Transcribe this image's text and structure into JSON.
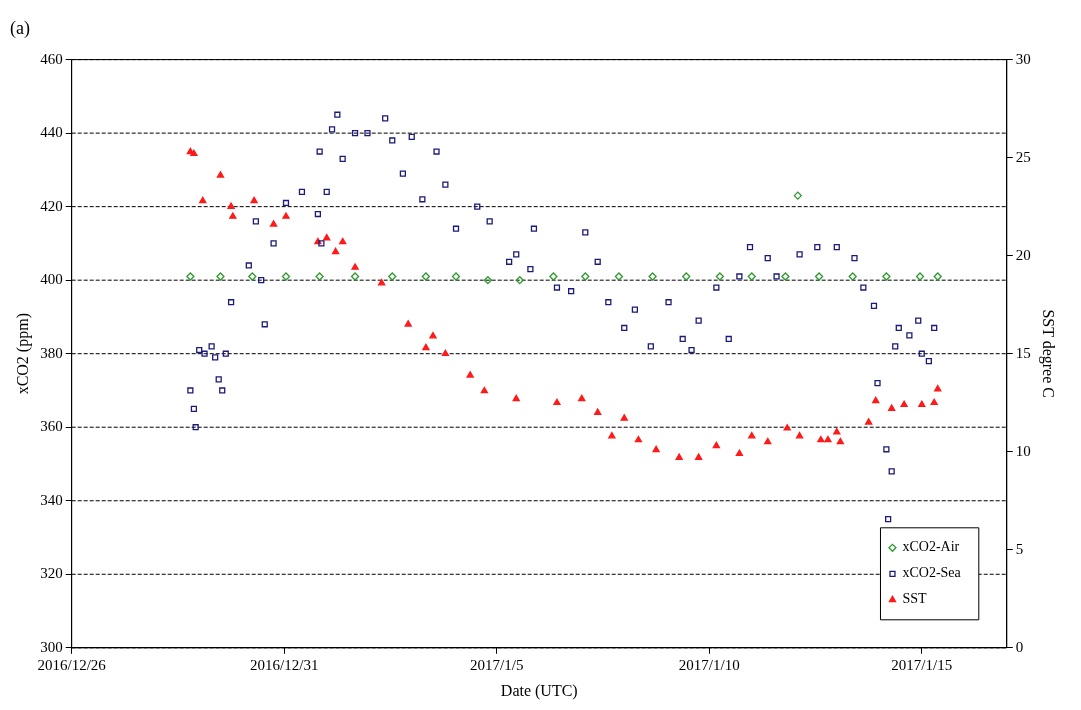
{
  "chart_data": {
    "type": "scatter",
    "title": "(a)",
    "xlabel": "Date (UTC)",
    "ylabel": "xCO2 (ppm)",
    "y2label": "SST degree C",
    "xlim": [
      "2016-12-26",
      "2017-01-17"
    ],
    "xticks": [
      {
        "value": "2016-12-26",
        "label": "2016/12/26"
      },
      {
        "value": "2016-12-31",
        "label": "2016/12/31"
      },
      {
        "value": "2017-01-05",
        "label": "2017/1/5"
      },
      {
        "value": "2017-01-10",
        "label": "2017/1/10"
      },
      {
        "value": "2017-01-15",
        "label": "2017/1/15"
      }
    ],
    "ylim": [
      300,
      460
    ],
    "yticks": [
      300,
      320,
      340,
      360,
      380,
      400,
      420,
      440,
      460
    ],
    "y2lim": [
      0,
      30
    ],
    "y2ticks": [
      0,
      5,
      10,
      15,
      20,
      25,
      30
    ],
    "grid": "y",
    "legend": "bottom right",
    "series": [
      {
        "name": "xCO2-Air",
        "color": "#2e9a2e",
        "marker": "diamond",
        "x": [
          "2016-12-28T19:00",
          "2016-12-29T12:00",
          "2016-12-30T06:00",
          "2016-12-31T01:00",
          "2016-12-31T20:00",
          "2017-01-01T16:00",
          "2017-01-02T13:00",
          "2017-01-03T08:00",
          "2017-01-04T01:00",
          "2017-01-04T19:00",
          "2017-01-05T13:00",
          "2017-01-06T08:00",
          "2017-01-07T02:00",
          "2017-01-07T21:00",
          "2017-01-08T16:00",
          "2017-01-09T11:00",
          "2017-01-10T06:00",
          "2017-01-11T00:00",
          "2017-01-11T19:00",
          "2017-01-12T02:00",
          "2017-01-12T14:00",
          "2017-01-13T09:00",
          "2017-01-14T04:00",
          "2017-01-14T23:00",
          "2017-01-15T09:00"
        ],
        "values": [
          401,
          401,
          401,
          401,
          401,
          401,
          401,
          401,
          401,
          400,
          400,
          401,
          401,
          401,
          401,
          401,
          401,
          401,
          401,
          423,
          401,
          401,
          401,
          401,
          401
        ]
      },
      {
        "name": "xCO2-Sea",
        "color": "#1a1a7a",
        "marker": "square",
        "x": [
          "2016-12-28T19:00",
          "2016-12-28T21:00",
          "2016-12-28T22:00",
          "2016-12-29T00:00",
          "2016-12-29T03:00",
          "2016-12-29T07:00",
          "2016-12-29T09:00",
          "2016-12-29T11:00",
          "2016-12-29T13:00",
          "2016-12-29T15:00",
          "2016-12-29T18:00",
          "2016-12-30T04:00",
          "2016-12-30T08:00",
          "2016-12-30T11:00",
          "2016-12-30T13:00",
          "2016-12-30T18:00",
          "2016-12-31T01:00",
          "2016-12-31T10:00",
          "2016-12-31T19:00",
          "2016-12-31T21:00",
          "2016-12-31T20:00",
          "2017-01-01T00:00",
          "2017-01-01T03:00",
          "2017-01-01T06:00",
          "2017-01-01T09:00",
          "2017-01-01T16:00",
          "2017-01-01T23:00",
          "2017-01-02T09:00",
          "2017-01-02T13:00",
          "2017-01-02T19:00",
          "2017-01-03T00:00",
          "2017-01-03T06:00",
          "2017-01-03T14:00",
          "2017-01-03T19:00",
          "2017-01-04T01:00",
          "2017-01-04T13:00",
          "2017-01-04T20:00",
          "2017-01-05T07:00",
          "2017-01-05T11:00",
          "2017-01-05T19:00",
          "2017-01-05T21:00",
          "2017-01-06T10:00",
          "2017-01-06T18:00",
          "2017-01-07T02:00",
          "2017-01-07T09:00",
          "2017-01-07T15:00",
          "2017-01-08T00:00",
          "2017-01-08T06:00",
          "2017-01-08T15:00",
          "2017-01-09T01:00",
          "2017-01-09T09:00",
          "2017-01-09T14:00",
          "2017-01-09T18:00",
          "2017-01-10T04:00",
          "2017-01-10T11:00",
          "2017-01-10T17:00",
          "2017-01-10T23:00",
          "2017-01-11T09:00",
          "2017-01-11T14:00",
          "2017-01-12T03:00",
          "2017-01-12T13:00",
          "2017-01-13T00:00",
          "2017-01-13T10:00",
          "2017-01-13T15:00",
          "2017-01-13T21:00",
          "2017-01-13T23:00",
          "2017-01-14T04:00",
          "2017-01-14T05:00",
          "2017-01-14T07:00",
          "2017-01-14T09:00",
          "2017-01-14T11:00",
          "2017-01-14T17:00",
          "2017-01-14T22:00",
          "2017-01-15T00:00",
          "2017-01-15T04:00",
          "2017-01-15T07:00"
        ],
        "values": [
          370,
          365,
          360,
          381,
          380,
          382,
          379,
          373,
          370,
          380,
          394,
          404,
          416,
          400,
          388,
          410,
          421,
          424,
          418,
          410,
          435,
          424,
          441,
          445,
          433,
          440,
          440,
          444,
          438,
          429,
          439,
          422,
          435,
          426,
          414,
          420,
          416,
          405,
          407,
          403,
          414,
          398,
          397,
          413,
          405,
          394,
          387,
          392,
          382,
          394,
          384,
          381,
          389,
          398,
          384,
          401,
          409,
          406,
          401,
          407,
          409,
          409,
          406,
          398,
          393,
          372,
          354,
          335,
          348,
          382,
          387,
          385,
          389,
          380,
          378,
          387
        ]
      },
      {
        "name": "SST",
        "color": "#ff1a1a",
        "marker": "triangle",
        "axis": "y2",
        "x": [
          "2016-12-28T19:00",
          "2016-12-28T21:00",
          "2016-12-29T02:00",
          "2016-12-29T12:00",
          "2016-12-29T18:00",
          "2016-12-29T19:00",
          "2016-12-30T07:00",
          "2016-12-30T18:00",
          "2016-12-31T01:00",
          "2016-12-31T19:00",
          "2017-01-01T00:00",
          "2017-01-01T05:00",
          "2017-01-01T09:00",
          "2017-01-01T16:00",
          "2017-01-02T07:00",
          "2017-01-02T22:00",
          "2017-01-03T08:00",
          "2017-01-03T12:00",
          "2017-01-03T19:00",
          "2017-01-04T09:00",
          "2017-01-04T17:00",
          "2017-01-05T11:00",
          "2017-01-06T10:00",
          "2017-01-07T00:00",
          "2017-01-07T09:00",
          "2017-01-07T17:00",
          "2017-01-08T00:00",
          "2017-01-08T08:00",
          "2017-01-08T18:00",
          "2017-01-09T07:00",
          "2017-01-09T18:00",
          "2017-01-10T04:00",
          "2017-01-10T17:00",
          "2017-01-11T00:00",
          "2017-01-11T09:00",
          "2017-01-11T20:00",
          "2017-01-12T03:00",
          "2017-01-12T15:00",
          "2017-01-12T19:00",
          "2017-01-13T00:00",
          "2017-01-13T02:00",
          "2017-01-13T18:00",
          "2017-01-13T22:00",
          "2017-01-14T07:00",
          "2017-01-14T14:00",
          "2017-01-15T00:00",
          "2017-01-15T07:00",
          "2017-01-15T09:00"
        ],
        "values": [
          25.3,
          25.2,
          22.8,
          24.1,
          22.5,
          22,
          22.8,
          21.6,
          22,
          20.7,
          20.9,
          20.2,
          20.7,
          19.4,
          18.6,
          16.5,
          15.3,
          15.9,
          15,
          13.9,
          13.1,
          12.7,
          12.5,
          12.7,
          12,
          10.8,
          11.7,
          10.6,
          10.1,
          9.7,
          9.7,
          10.3,
          9.9,
          10.8,
          10.5,
          11.2,
          10.8,
          10.6,
          10.6,
          11,
          10.5,
          11.5,
          12.6,
          12.2,
          12.4,
          12.4,
          12.5,
          13.2
        ]
      }
    ]
  }
}
